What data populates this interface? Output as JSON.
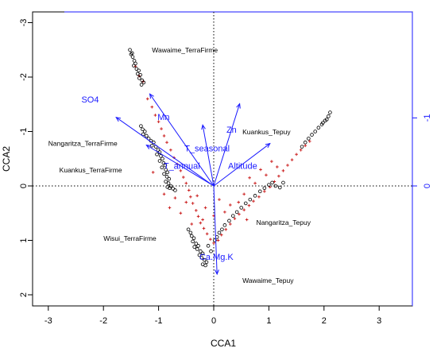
{
  "chart_data": {
    "type": "scatter",
    "xlabel": "CCA1",
    "ylabel": "CCA2",
    "xlim": [
      -3.1,
      3.6
    ],
    "ylim": [
      -3.2,
      2.2
    ],
    "y_inverted": true,
    "x_ticks": [
      -3,
      -2,
      -1,
      0,
      1,
      2,
      3
    ],
    "y_ticks": [
      -3,
      -2,
      -1,
      0,
      1,
      2
    ],
    "top_axis_ticks": [],
    "right_axis_ticks": [
      -1,
      0
    ],
    "reference_lines": {
      "x": 0,
      "y": 0,
      "style": "dotted"
    },
    "colors": {
      "site_points": "#000000",
      "species_points": "#cc2222",
      "biplot_arrows": "#1a1aff",
      "frame": "#000000",
      "secondary_axes": "#1a1aff"
    },
    "site_labels": [
      {
        "text": "Wawaime_TerraFirme",
        "x": -1.12,
        "y": -2.5
      },
      {
        "text": "Nangaritza_TerraFirme",
        "x": -3.0,
        "y": -0.78
      },
      {
        "text": "Kuankus_TerraFirme",
        "x": -2.8,
        "y": -0.29
      },
      {
        "text": "Wisui_TerraFirme",
        "x": -2.0,
        "y": 0.96
      },
      {
        "text": "Kuankus_Tepuy",
        "x": 0.52,
        "y": -0.99
      },
      {
        "text": "Nangaritza_Tepuy",
        "x": 0.77,
        "y": 0.67
      },
      {
        "text": "Wawaime_Tepuy",
        "x": 0.52,
        "y": 1.74
      }
    ],
    "env_vectors": [
      {
        "name": "SO4",
        "x": -1.77,
        "y": -1.26,
        "label_x": -2.4,
        "label_y": -1.59
      },
      {
        "name": "Mn",
        "x": -1.16,
        "y": -1.69,
        "label_x": -1.02,
        "label_y": -1.27
      },
      {
        "name": "Zn",
        "x": 0.47,
        "y": -1.51,
        "label_x": 0.23,
        "label_y": -1.04
      },
      {
        "name": "T_seasonal",
        "x": -0.2,
        "y": -1.12,
        "label_x": -0.53,
        "label_y": -0.69
      },
      {
        "name": "T_annual",
        "x": -1.22,
        "y": -0.75,
        "label_x": -0.91,
        "label_y": -0.37
      },
      {
        "name": "Altitude",
        "x": 1.02,
        "y": -0.78,
        "label_x": 0.26,
        "label_y": -0.37
      },
      {
        "name": "Ca.Mg.K",
        "x": 0.06,
        "y": 1.62,
        "label_x": -0.26,
        "label_y": 1.3
      }
    ],
    "sites": [
      [
        -1.52,
        -2.5
      ],
      [
        -1.48,
        -2.44
      ],
      [
        -1.5,
        -2.42
      ],
      [
        -1.47,
        -2.37
      ],
      [
        -1.44,
        -2.3
      ],
      [
        -1.42,
        -2.25
      ],
      [
        -1.45,
        -2.21
      ],
      [
        -1.4,
        -2.15
      ],
      [
        -1.36,
        -2.12
      ],
      [
        -1.38,
        -2.06
      ],
      [
        -1.33,
        -2.04
      ],
      [
        -1.35,
        -1.98
      ],
      [
        -1.3,
        -1.94
      ],
      [
        -1.27,
        -1.9
      ],
      [
        -1.31,
        -1.86
      ],
      [
        -1.32,
        -1.1
      ],
      [
        -1.29,
        -1.04
      ],
      [
        -1.25,
        -1.0
      ],
      [
        -1.28,
        -0.95
      ],
      [
        -1.22,
        -0.92
      ],
      [
        -1.18,
        -0.87
      ],
      [
        -1.14,
        -0.83
      ],
      [
        -1.09,
        -0.8
      ],
      [
        -1.12,
        -0.74
      ],
      [
        -1.05,
        -0.72
      ],
      [
        -1.01,
        -0.66
      ],
      [
        -0.98,
        -0.62
      ],
      [
        -1.03,
        -0.58
      ],
      [
        -0.96,
        -0.55
      ],
      [
        -0.93,
        -0.5
      ],
      [
        -0.98,
        -0.46
      ],
      [
        -0.91,
        -0.42
      ],
      [
        -0.88,
        -0.38
      ],
      [
        -0.94,
        -0.34
      ],
      [
        -0.87,
        -0.3
      ],
      [
        -0.84,
        -0.25
      ],
      [
        -0.9,
        -0.22
      ],
      [
        -0.85,
        -0.17
      ],
      [
        -0.81,
        -0.13
      ],
      [
        -0.87,
        -0.08
      ],
      [
        -0.82,
        -0.05
      ],
      [
        -0.78,
        0.0
      ],
      [
        -0.84,
        0.02
      ],
      [
        -0.8,
        0.04
      ],
      [
        -0.74,
        0.05
      ],
      [
        -0.7,
        0.08
      ],
      [
        -0.46,
        0.8
      ],
      [
        -0.42,
        0.86
      ],
      [
        -0.4,
        0.92
      ],
      [
        -0.36,
        0.96
      ],
      [
        -0.38,
        1.02
      ],
      [
        -0.32,
        1.06
      ],
      [
        -0.28,
        1.1
      ],
      [
        -0.35,
        1.12
      ],
      [
        -0.3,
        1.16
      ],
      [
        -0.24,
        1.2
      ],
      [
        -0.2,
        1.24
      ],
      [
        -0.26,
        1.27
      ],
      [
        -0.22,
        1.32
      ],
      [
        -0.17,
        1.36
      ],
      [
        -0.13,
        1.4
      ],
      [
        -0.2,
        1.44
      ],
      [
        -0.15,
        1.46
      ],
      [
        -0.1,
        1.1
      ],
      [
        -0.05,
        1.2
      ],
      [
        0.02,
        1.0
      ],
      [
        0.06,
        0.94
      ],
      [
        0.1,
        0.86
      ],
      [
        0.15,
        0.8
      ],
      [
        0.2,
        0.72
      ],
      [
        0.28,
        0.64
      ],
      [
        0.35,
        0.55
      ],
      [
        0.42,
        0.48
      ],
      [
        0.5,
        0.4
      ],
      [
        0.58,
        0.32
      ],
      [
        0.66,
        0.25
      ],
      [
        0.75,
        0.18
      ],
      [
        0.84,
        0.1
      ],
      [
        0.92,
        0.04
      ],
      [
        1.0,
        -0.02
      ],
      [
        1.06,
        -0.06
      ],
      [
        1.12,
        0.0
      ],
      [
        1.2,
        0.03
      ],
      [
        1.26,
        -0.06
      ],
      [
        1.6,
        -0.72
      ],
      [
        1.66,
        -0.8
      ],
      [
        1.72,
        -0.87
      ],
      [
        1.78,
        -0.94
      ],
      [
        1.84,
        -1.0
      ],
      [
        1.9,
        -1.07
      ],
      [
        1.96,
        -1.13
      ],
      [
        2.02,
        -1.2
      ],
      [
        2.08,
        -1.28
      ],
      [
        2.11,
        -1.35
      ],
      [
        2.05,
        -1.22
      ],
      [
        1.98,
        -1.16
      ]
    ],
    "species": [
      [
        -1.42,
        -2.2
      ],
      [
        -1.35,
        -2.02
      ],
      [
        -1.28,
        -1.92
      ],
      [
        -1.2,
        -1.6
      ],
      [
        -1.12,
        -1.45
      ],
      [
        -1.06,
        -1.3
      ],
      [
        -1.0,
        -1.18
      ],
      [
        -0.95,
        -1.05
      ],
      [
        -0.9,
        -0.92
      ],
      [
        -0.85,
        -0.8
      ],
      [
        -0.78,
        -0.66
      ],
      [
        -0.72,
        -0.52
      ],
      [
        -0.66,
        -0.4
      ],
      [
        -0.6,
        -0.28
      ],
      [
        -0.55,
        -0.16
      ],
      [
        -0.5,
        -0.05
      ],
      [
        -0.45,
        0.08
      ],
      [
        -0.42,
        0.2
      ],
      [
        -0.38,
        0.32
      ],
      [
        -0.32,
        0.45
      ],
      [
        -0.28,
        0.56
      ],
      [
        -0.24,
        0.68
      ],
      [
        -0.18,
        0.78
      ],
      [
        -0.12,
        0.88
      ],
      [
        -0.06,
        0.98
      ],
      [
        0.0,
        1.05
      ],
      [
        0.08,
        1.0
      ],
      [
        0.14,
        0.9
      ],
      [
        0.22,
        0.8
      ],
      [
        0.3,
        0.7
      ],
      [
        0.38,
        0.6
      ],
      [
        0.46,
        0.52
      ],
      [
        0.55,
        0.44
      ],
      [
        0.64,
        0.36
      ],
      [
        0.72,
        0.28
      ],
      [
        0.82,
        0.2
      ],
      [
        0.92,
        0.1
      ],
      [
        1.02,
        0.02
      ],
      [
        1.1,
        -0.08
      ],
      [
        1.18,
        -0.18
      ],
      [
        1.26,
        -0.28
      ],
      [
        1.34,
        -0.38
      ],
      [
        1.42,
        -0.48
      ],
      [
        1.5,
        -0.58
      ],
      [
        1.58,
        -0.66
      ],
      [
        1.66,
        -0.74
      ],
      [
        1.74,
        -0.82
      ],
      [
        -0.9,
        0.15
      ],
      [
        -0.7,
        0.22
      ],
      [
        -0.5,
        0.3
      ],
      [
        -0.3,
        0.18
      ],
      [
        -0.15,
        0.4
      ],
      [
        0.1,
        0.25
      ],
      [
        0.3,
        0.35
      ],
      [
        0.55,
        0.15
      ],
      [
        0.75,
        -0.05
      ],
      [
        0.95,
        -0.2
      ],
      [
        1.15,
        -0.35
      ],
      [
        -1.1,
        -0.25
      ],
      [
        -0.6,
        0.5
      ],
      [
        -0.2,
        0.62
      ],
      [
        0.2,
        0.48
      ],
      [
        0.45,
        0.3
      ],
      [
        0.65,
        -0.15
      ],
      [
        0.85,
        -0.3
      ],
      [
        1.05,
        -0.45
      ],
      [
        -0.8,
        0.4
      ],
      [
        -0.4,
        0.7
      ],
      [
        0.0,
        0.55
      ],
      [
        0.6,
        0.62
      ]
    ]
  }
}
